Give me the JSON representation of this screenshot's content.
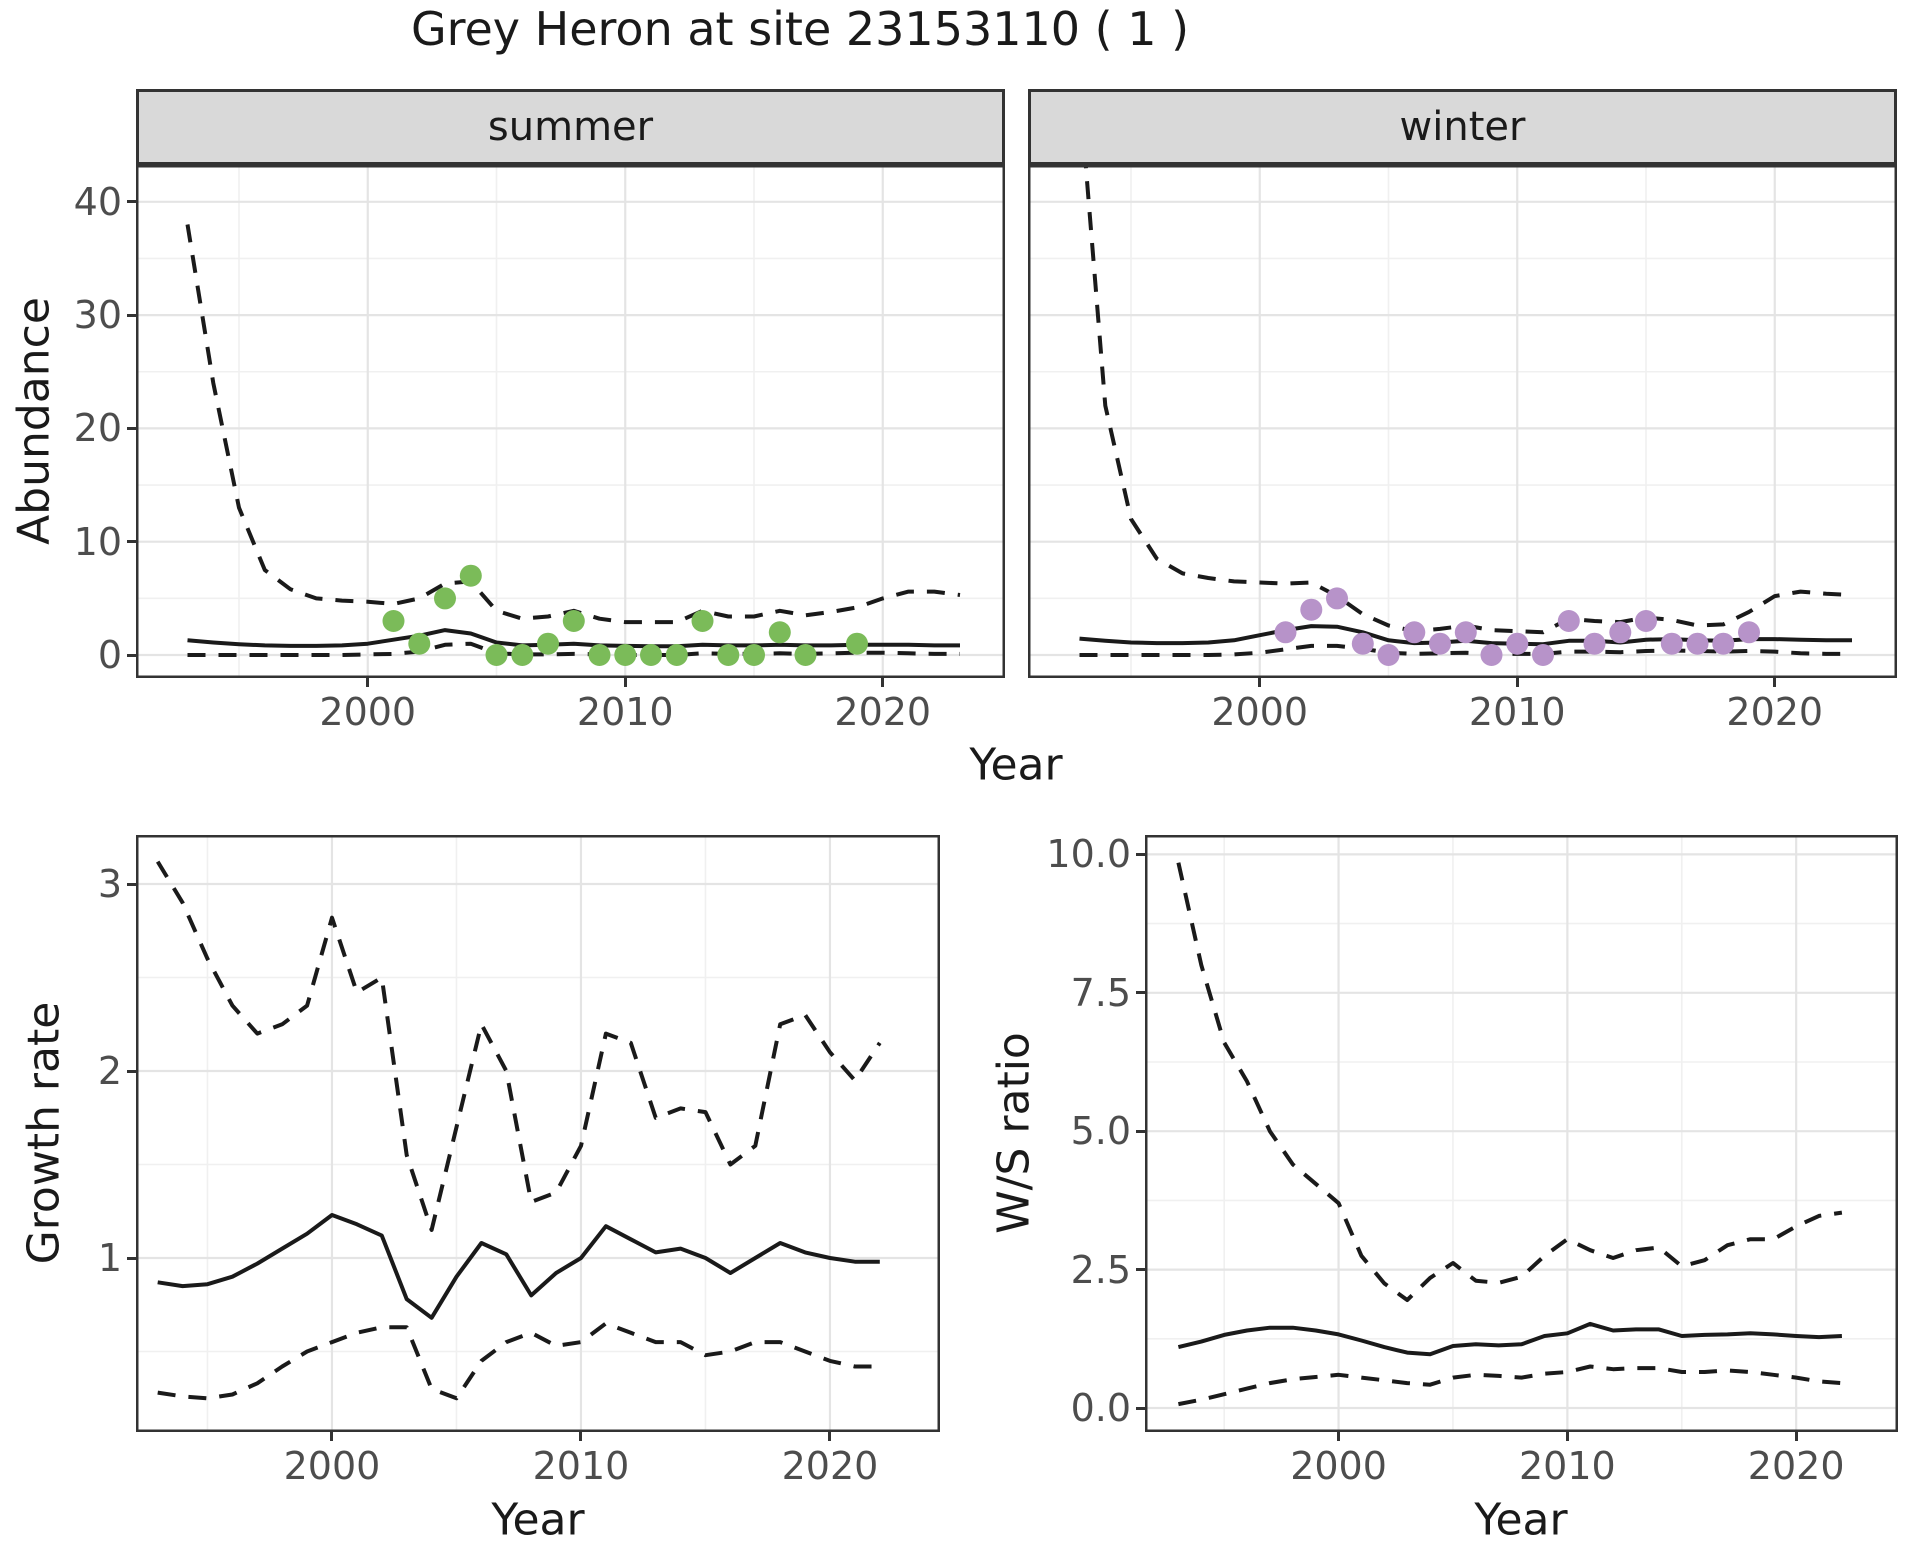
{
  "title": "Grey Heron at site 23153110 ( 1 )",
  "labels": {
    "year": "Year",
    "abundance": "Abundance",
    "growth_rate": "Growth rate",
    "ws_ratio": "W/S ratio"
  },
  "facets": {
    "summer": "summer",
    "winter": "winter"
  },
  "colors": {
    "summer_point": "#7BBB59",
    "winter_point": "#B793C9",
    "line": "#1A1A1A",
    "grid_major": "#E4E4E4",
    "grid_minor": "#F0F0F0",
    "strip_bg": "#D9D9D9",
    "panel_border": "#333333",
    "axis_text": "#4D4D4D"
  },
  "chart_data": [
    {
      "type": "line-scatter",
      "panel": "summer",
      "facet_label": "summer",
      "xlabel": "Year",
      "ylabel": "Abundance",
      "xlim": [
        1991.0,
        2024.75
      ],
      "ylim": [
        -2.0,
        43.2
      ],
      "x_ticks": {
        "values": [
          2000,
          2010,
          2020
        ],
        "labels": [
          "2000",
          "2010",
          "2020"
        ]
      },
      "x_minor": [
        1995,
        2005,
        2015
      ],
      "y_ticks": {
        "values": [
          0,
          10,
          20,
          30,
          40
        ],
        "labels": [
          "0",
          "10",
          "20",
          "30",
          "40"
        ]
      },
      "y_minor": [
        5,
        15,
        25,
        35
      ],
      "show_y_axis": true,
      "point_color": "#7BBB59",
      "points": {
        "years": [
          2001,
          2002,
          2003,
          2004,
          2005,
          2006,
          2007,
          2008,
          2009,
          2010,
          2011,
          2012,
          2013,
          2014,
          2015,
          2016,
          2017,
          2019
        ],
        "values": [
          3,
          1,
          5,
          7,
          0,
          0,
          1,
          3,
          0,
          0,
          0,
          0,
          3,
          0,
          0,
          2,
          0,
          1
        ]
      },
      "fit": {
        "years": [
          1993,
          1994,
          1995,
          1996,
          1997,
          1998,
          1999,
          2000,
          2001,
          2002,
          2003,
          2004,
          2005,
          2006,
          2007,
          2008,
          2009,
          2010,
          2011,
          2012,
          2013,
          2014,
          2015,
          2016,
          2017,
          2018,
          2019,
          2020,
          2021,
          2022,
          2023
        ],
        "values": [
          1.3,
          1.1,
          0.95,
          0.85,
          0.8,
          0.8,
          0.85,
          1.0,
          1.35,
          1.7,
          2.2,
          1.9,
          1.1,
          0.85,
          0.9,
          1.0,
          0.85,
          0.8,
          0.78,
          0.78,
          0.9,
          0.85,
          0.85,
          0.9,
          0.85,
          0.85,
          0.9,
          0.9,
          0.9,
          0.85,
          0.85
        ]
      },
      "upper": {
        "years": [
          1993,
          1994,
          1995,
          1996,
          1997,
          1998,
          1999,
          2000,
          2001,
          2002,
          2003,
          2004,
          2005,
          2006,
          2007,
          2008,
          2009,
          2010,
          2011,
          2012,
          2013,
          2014,
          2015,
          2016,
          2017,
          2018,
          2019,
          2020,
          2021,
          2022,
          2023
        ],
        "values": [
          38,
          24,
          13,
          7.5,
          5.8,
          5.0,
          4.8,
          4.7,
          4.5,
          5.0,
          6.3,
          6.5,
          3.9,
          3.2,
          3.4,
          3.9,
          3.2,
          2.9,
          2.9,
          2.9,
          3.9,
          3.4,
          3.4,
          3.9,
          3.5,
          3.8,
          4.2,
          5.0,
          5.6,
          5.6,
          5.3
        ]
      },
      "lower": {
        "years": [
          1993,
          1994,
          1995,
          1996,
          1997,
          1998,
          1999,
          2000,
          2001,
          2002,
          2003,
          2004,
          2005,
          2006,
          2007,
          2008,
          2009,
          2010,
          2011,
          2012,
          2013,
          2014,
          2015,
          2016,
          2017,
          2018,
          2019,
          2020,
          2021,
          2022,
          2023
        ],
        "values": [
          0,
          0,
          0,
          0,
          0,
          0,
          0,
          0.05,
          0.1,
          0.3,
          0.9,
          1.0,
          0.15,
          0.05,
          0.05,
          0.1,
          0.05,
          0,
          0,
          0,
          0.15,
          0.1,
          0.1,
          0.15,
          0.1,
          0.15,
          0.2,
          0.2,
          0.15,
          0.1,
          0.1
        ]
      }
    },
    {
      "type": "line-scatter",
      "panel": "winter",
      "facet_label": "winter",
      "xlabel": "Year",
      "ylabel": "Abundance",
      "xlim": [
        1991.0,
        2024.75
      ],
      "ylim": [
        -2.0,
        43.2
      ],
      "x_ticks": {
        "values": [
          2000,
          2010,
          2020
        ],
        "labels": [
          "2000",
          "2010",
          "2020"
        ]
      },
      "x_minor": [
        1995,
        2005,
        2015
      ],
      "y_ticks": {
        "values": [
          0,
          10,
          20,
          30,
          40
        ],
        "labels": [
          "0",
          "10",
          "20",
          "30",
          "40"
        ]
      },
      "y_minor": [
        5,
        15,
        25,
        35
      ],
      "show_y_axis": false,
      "point_color": "#B793C9",
      "points": {
        "years": [
          2001,
          2002,
          2003,
          2004,
          2005,
          2006,
          2007,
          2008,
          2009,
          2010,
          2011,
          2012,
          2013,
          2014,
          2015,
          2016,
          2017,
          2018,
          2019
        ],
        "values": [
          2,
          4,
          5,
          1,
          0,
          2,
          1,
          2,
          0,
          1,
          0,
          3,
          1,
          2,
          3,
          1,
          1,
          1,
          2
        ]
      },
      "fit": {
        "years": [
          1993,
          1994,
          1995,
          1996,
          1997,
          1998,
          1999,
          2000,
          2001,
          2002,
          2003,
          2004,
          2005,
          2006,
          2007,
          2008,
          2009,
          2010,
          2011,
          2012,
          2013,
          2014,
          2015,
          2016,
          2017,
          2018,
          2019,
          2020,
          2021,
          2022,
          2023
        ],
        "values": [
          1.45,
          1.25,
          1.1,
          1.05,
          1.05,
          1.1,
          1.3,
          1.75,
          2.2,
          2.55,
          2.5,
          2.0,
          1.3,
          1.05,
          1.1,
          1.25,
          1.05,
          1.0,
          0.95,
          1.25,
          1.25,
          1.1,
          1.35,
          1.4,
          1.3,
          1.25,
          1.4,
          1.4,
          1.35,
          1.3,
          1.3
        ]
      },
      "upper": {
        "years": [
          1993,
          1994,
          1995,
          1996,
          1997,
          1998,
          1999,
          2000,
          2001,
          2002,
          2003,
          2004,
          2005,
          2006,
          2007,
          2008,
          2009,
          2010,
          2011,
          2012,
          2013,
          2014,
          2015,
          2016,
          2017,
          2018,
          2019,
          2020,
          2021,
          2022,
          2023
        ],
        "values": [
          50,
          22,
          12,
          8.5,
          7.2,
          6.8,
          6.5,
          6.4,
          6.3,
          6.4,
          5.2,
          3.6,
          2.6,
          2.1,
          2.3,
          2.6,
          2.2,
          2.1,
          2.0,
          3.2,
          3.0,
          2.9,
          3.3,
          3.1,
          2.6,
          2.7,
          3.8,
          5.2,
          5.6,
          5.4,
          5.3
        ]
      },
      "lower": {
        "years": [
          1993,
          1994,
          1995,
          1996,
          1997,
          1998,
          1999,
          2000,
          2001,
          2002,
          2003,
          2004,
          2005,
          2006,
          2007,
          2008,
          2009,
          2010,
          2011,
          2012,
          2013,
          2014,
          2015,
          2016,
          2017,
          2018,
          2019,
          2020,
          2021,
          2022,
          2023
        ],
        "values": [
          0,
          0,
          0,
          0,
          0,
          0,
          0.05,
          0.2,
          0.5,
          0.8,
          0.8,
          0.55,
          0.2,
          0.1,
          0.15,
          0.2,
          0.1,
          0.1,
          0.1,
          0.3,
          0.3,
          0.25,
          0.35,
          0.4,
          0.35,
          0.3,
          0.35,
          0.3,
          0.15,
          0.1,
          0.1
        ]
      }
    },
    {
      "type": "line",
      "panel": "growth_rate",
      "xlabel": "Year",
      "ylabel": "Growth rate",
      "xlim": [
        1992.13,
        2024.42
      ],
      "ylim": [
        0.07,
        3.26
      ],
      "x_ticks": {
        "values": [
          2000,
          2010,
          2020
        ],
        "labels": [
          "2000",
          "2010",
          "2020"
        ]
      },
      "x_minor": [
        1995,
        2005,
        2015
      ],
      "y_ticks": {
        "values": [
          1,
          2,
          3
        ],
        "labels": [
          "1",
          "2",
          "3"
        ]
      },
      "y_minor": [
        0.5,
        1.5,
        2.5
      ],
      "show_y_axis": true,
      "fit": {
        "years": [
          1993,
          1994,
          1995,
          1996,
          1997,
          1998,
          1999,
          2000,
          2001,
          2002,
          2003,
          2004,
          2005,
          2006,
          2007,
          2008,
          2009,
          2010,
          2011,
          2012,
          2013,
          2014,
          2015,
          2016,
          2017,
          2018,
          2019,
          2020,
          2021,
          2022
        ],
        "values": [
          0.87,
          0.85,
          0.86,
          0.9,
          0.97,
          1.05,
          1.13,
          1.23,
          1.18,
          1.12,
          0.78,
          0.68,
          0.9,
          1.08,
          1.02,
          0.8,
          0.92,
          1.0,
          1.17,
          1.1,
          1.03,
          1.05,
          1.0,
          0.92,
          1.0,
          1.08,
          1.03,
          1.0,
          0.98,
          0.98
        ]
      },
      "upper": {
        "years": [
          1993,
          1994,
          1995,
          1996,
          1997,
          1998,
          1999,
          2000,
          2001,
          2002,
          2003,
          2004,
          2005,
          2006,
          2007,
          2008,
          2009,
          2010,
          2011,
          2012,
          2013,
          2014,
          2015,
          2016,
          2017,
          2018,
          2019,
          2020,
          2021,
          2022
        ],
        "values": [
          3.12,
          2.9,
          2.6,
          2.35,
          2.2,
          2.25,
          2.35,
          2.82,
          2.42,
          2.5,
          1.55,
          1.15,
          1.7,
          2.25,
          2.0,
          1.3,
          1.35,
          1.6,
          2.2,
          2.15,
          1.75,
          1.8,
          1.78,
          1.5,
          1.6,
          2.25,
          2.3,
          2.1,
          1.95,
          2.15
        ]
      },
      "lower": {
        "years": [
          1993,
          1994,
          1995,
          1996,
          1997,
          1998,
          1999,
          2000,
          2001,
          2002,
          2003,
          2004,
          2005,
          2006,
          2007,
          2008,
          2009,
          2010,
          2011,
          2012,
          2013,
          2014,
          2015,
          2016,
          2017,
          2018,
          2019,
          2020,
          2021,
          2022
        ],
        "values": [
          0.28,
          0.26,
          0.25,
          0.27,
          0.33,
          0.42,
          0.5,
          0.55,
          0.6,
          0.63,
          0.63,
          0.3,
          0.25,
          0.45,
          0.55,
          0.6,
          0.53,
          0.55,
          0.65,
          0.6,
          0.55,
          0.55,
          0.48,
          0.5,
          0.55,
          0.55,
          0.5,
          0.45,
          0.42,
          0.42
        ]
      }
    },
    {
      "type": "line",
      "panel": "ws_ratio",
      "xlabel": "Year",
      "ylabel": "W/S ratio",
      "xlim": [
        1991.54,
        2024.45
      ],
      "ylim": [
        -0.43,
        10.35
      ],
      "x_ticks": {
        "values": [
          2000,
          2010,
          2020
        ],
        "labels": [
          "2000",
          "2010",
          "2020"
        ]
      },
      "x_minor": [
        1995,
        2005,
        2015
      ],
      "y_ticks": {
        "values": [
          0,
          2.5,
          5,
          7.5,
          10
        ],
        "labels": [
          "0.0",
          "2.5",
          "5.0",
          "7.5",
          "10.0"
        ]
      },
      "y_minor": [
        1.25,
        3.75,
        6.25,
        8.75
      ],
      "show_y_axis": true,
      "fit": {
        "years": [
          1993,
          1994,
          1995,
          1996,
          1997,
          1998,
          1999,
          2000,
          2001,
          2002,
          2003,
          2004,
          2005,
          2006,
          2007,
          2008,
          2009,
          2010,
          2011,
          2012,
          2013,
          2014,
          2015,
          2016,
          2017,
          2018,
          2019,
          2020,
          2021,
          2022
        ],
        "values": [
          1.1,
          1.2,
          1.32,
          1.4,
          1.45,
          1.45,
          1.4,
          1.33,
          1.22,
          1.1,
          1.0,
          0.97,
          1.12,
          1.15,
          1.13,
          1.15,
          1.3,
          1.35,
          1.52,
          1.4,
          1.42,
          1.42,
          1.3,
          1.32,
          1.33,
          1.35,
          1.33,
          1.3,
          1.28,
          1.3
        ]
      },
      "upper": {
        "years": [
          1993,
          1994,
          1995,
          1996,
          1997,
          1998,
          1999,
          2000,
          2001,
          2002,
          2003,
          2004,
          2005,
          2006,
          2007,
          2008,
          2009,
          2010,
          2011,
          2012,
          2013,
          2014,
          2015,
          2016,
          2017,
          2018,
          2019,
          2020,
          2021,
          2022
        ],
        "values": [
          9.85,
          8.0,
          6.6,
          5.9,
          5.0,
          4.4,
          4.05,
          3.7,
          2.75,
          2.25,
          1.95,
          2.35,
          2.62,
          2.3,
          2.26,
          2.37,
          2.75,
          3.05,
          2.85,
          2.71,
          2.85,
          2.9,
          2.56,
          2.67,
          2.94,
          3.05,
          3.05,
          3.28,
          3.47,
          3.53
        ]
      },
      "lower": {
        "years": [
          1993,
          1994,
          1995,
          1996,
          1997,
          1998,
          1999,
          2000,
          2001,
          2002,
          2003,
          2004,
          2005,
          2006,
          2007,
          2008,
          2009,
          2010,
          2011,
          2012,
          2013,
          2014,
          2015,
          2016,
          2017,
          2018,
          2019,
          2020,
          2021,
          2022
        ],
        "values": [
          0.07,
          0.15,
          0.25,
          0.35,
          0.45,
          0.52,
          0.56,
          0.6,
          0.55,
          0.5,
          0.45,
          0.42,
          0.55,
          0.6,
          0.58,
          0.55,
          0.62,
          0.65,
          0.75,
          0.7,
          0.72,
          0.72,
          0.65,
          0.65,
          0.68,
          0.65,
          0.6,
          0.55,
          0.48,
          0.45
        ]
      }
    }
  ]
}
